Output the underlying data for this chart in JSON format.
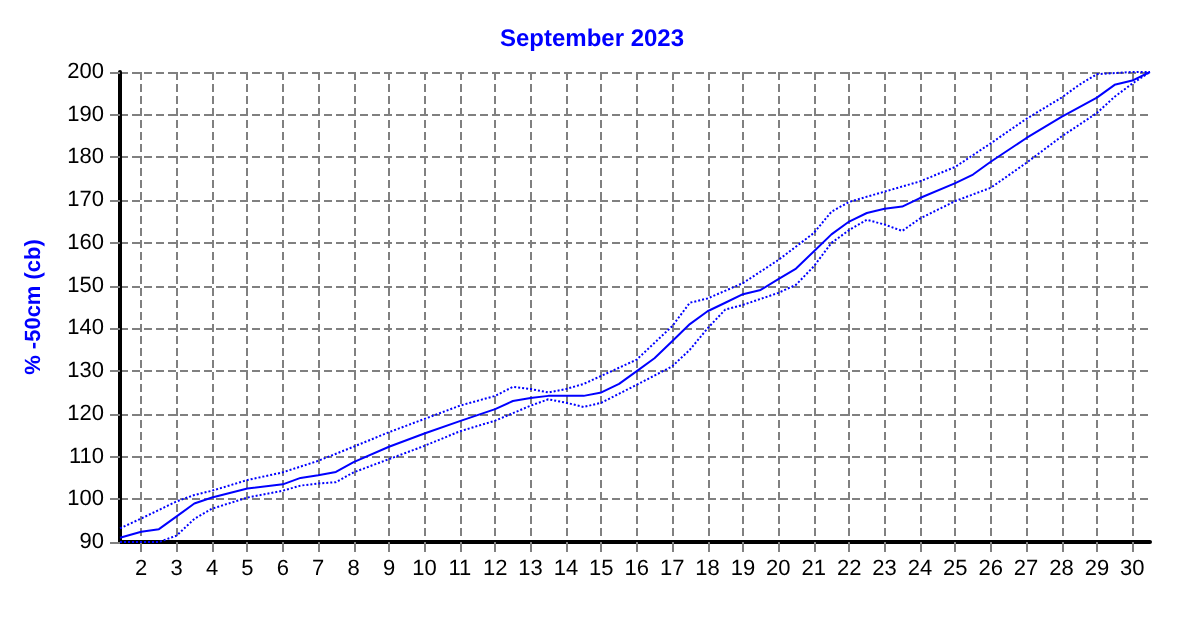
{
  "chart_data": {
    "type": "line",
    "title": "September 2023",
    "ylabel": "% -50cm (cb)",
    "xlim": [
      1.4,
      30.5
    ],
    "xticks": [
      2,
      3,
      4,
      5,
      6,
      7,
      8,
      9,
      10,
      11,
      12,
      13,
      14,
      15,
      16,
      17,
      18,
      19,
      20,
      21,
      22,
      23,
      24,
      25,
      26,
      27,
      28,
      29,
      30
    ],
    "ylim": [
      90,
      200
    ],
    "yticks": [
      90,
      100,
      110,
      120,
      130,
      140,
      150,
      160,
      170,
      180,
      190,
      200
    ],
    "grid": true,
    "marker": "none",
    "series": [
      {
        "color": "#0000ff",
        "line_style": "solid",
        "x": [
          1.4,
          2,
          2.5,
          3,
          3.5,
          4,
          5,
          6,
          6.5,
          7,
          7.5,
          8,
          9,
          10,
          11,
          12,
          12.5,
          13,
          13.5,
          14,
          14.5,
          15,
          15.5,
          16,
          16.5,
          17,
          17.5,
          18,
          18.5,
          19,
          19.5,
          20,
          20.5,
          21,
          21.5,
          22,
          22.5,
          23,
          23.5,
          24,
          25,
          25.5,
          26,
          27,
          28,
          29,
          29.5,
          30,
          30.5
        ],
        "values": [
          91,
          92.4,
          93,
          96,
          99,
          100.4,
          102.5,
          103.5,
          105,
          105.6,
          106.4,
          108.7,
          112.3,
          115.4,
          118.3,
          121.1,
          123,
          123.7,
          124.2,
          124.2,
          124.2,
          125,
          127,
          130,
          133,
          137,
          141,
          144,
          146,
          148,
          149,
          151.5,
          154,
          158,
          162,
          165,
          167,
          168,
          168.5,
          170.5,
          174,
          176,
          179,
          184.5,
          189.5,
          194,
          197,
          198,
          200
        ]
      },
      {
        "color": "#0000ff",
        "line_style": "dotted",
        "x": [
          1.4,
          2,
          3,
          3.5,
          4,
          5,
          6,
          7,
          8,
          9,
          10,
          11,
          12,
          12.5,
          13,
          13.5,
          14,
          14.5,
          15,
          16,
          17,
          17.5,
          18,
          19,
          20,
          21,
          21.5,
          22,
          23,
          24,
          25,
          26,
          27,
          28,
          28.5,
          29,
          30,
          30.5
        ],
        "values": [
          93.2,
          95.5,
          99.5,
          101,
          102,
          104.5,
          106.3,
          109,
          112.3,
          115.7,
          118.8,
          121.9,
          124.2,
          126.3,
          125.8,
          125,
          125.8,
          127,
          128.9,
          132.7,
          140.5,
          146,
          147,
          150.6,
          156,
          162.3,
          167.3,
          169.6,
          172,
          174.4,
          177.8,
          183.3,
          189,
          194,
          197,
          199.5,
          200,
          200
        ]
      },
      {
        "color": "#0000ff",
        "line_style": "dotted",
        "x": [
          1.4,
          2.5,
          3,
          3.5,
          4,
          5,
          6,
          6.5,
          7,
          7.5,
          8,
          9,
          10,
          11,
          12,
          13,
          13.5,
          14,
          14.5,
          15,
          16,
          17,
          17.5,
          18,
          18.5,
          19,
          20,
          20.5,
          21,
          21.5,
          22,
          22.5,
          23,
          23.5,
          24,
          25,
          26,
          27,
          28,
          29,
          29.5,
          30,
          30.5
        ],
        "values": [
          90,
          90,
          91.5,
          95.4,
          97.8,
          100.4,
          102,
          103.2,
          103.7,
          104,
          106.3,
          109.4,
          112.5,
          115.9,
          118.4,
          121.9,
          123.4,
          122.6,
          121.6,
          122.6,
          126.8,
          131.1,
          135,
          140,
          144.4,
          145.5,
          148.3,
          150.2,
          154.5,
          160,
          163,
          165.4,
          164.3,
          162.8,
          165.7,
          169.8,
          172.9,
          178.7,
          184.9,
          190.4,
          194.2,
          197.3,
          200
        ]
      }
    ]
  }
}
